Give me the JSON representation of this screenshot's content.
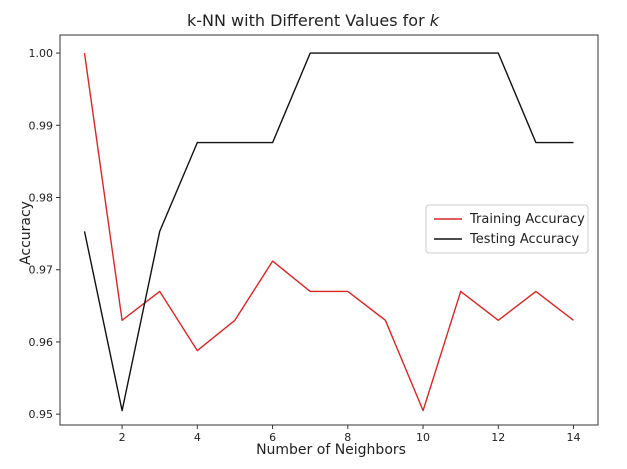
{
  "chart_data": {
    "type": "line",
    "title": "k-NN with Different Values for",
    "title_var": "k",
    "xlabel": "Number of Neighbors",
    "ylabel": "Accuracy",
    "xlim": [
      0.35,
      14.65
    ],
    "ylim": [
      0.9485,
      1.0025
    ],
    "xticks": [
      2,
      4,
      6,
      8,
      10,
      12,
      14
    ],
    "yticks": [
      0.95,
      0.96,
      0.97,
      0.98,
      0.99,
      1.0
    ],
    "ytick_labels": [
      "0.95",
      "0.96",
      "0.97",
      "0.98",
      "0.99",
      "1.00"
    ],
    "x": [
      1,
      2,
      3,
      4,
      5,
      6,
      7,
      8,
      9,
      10,
      11,
      12,
      13,
      14
    ],
    "series": [
      {
        "name": "Training Accuracy",
        "color": "#d62728",
        "values": [
          1.0,
          0.963,
          0.967,
          0.9588,
          0.963,
          0.9712,
          0.967,
          0.967,
          0.963,
          0.9505,
          0.967,
          0.963,
          0.967,
          0.963
        ]
      },
      {
        "name": "Testing Accuracy",
        "color": "#111111",
        "values": [
          0.9753,
          0.9505,
          0.9753,
          0.9876,
          0.9876,
          0.9876,
          1.0,
          1.0,
          1.0,
          1.0,
          1.0,
          1.0,
          0.9876,
          0.9876
        ]
      }
    ],
    "grid": false,
    "legend_position": "center-right"
  }
}
